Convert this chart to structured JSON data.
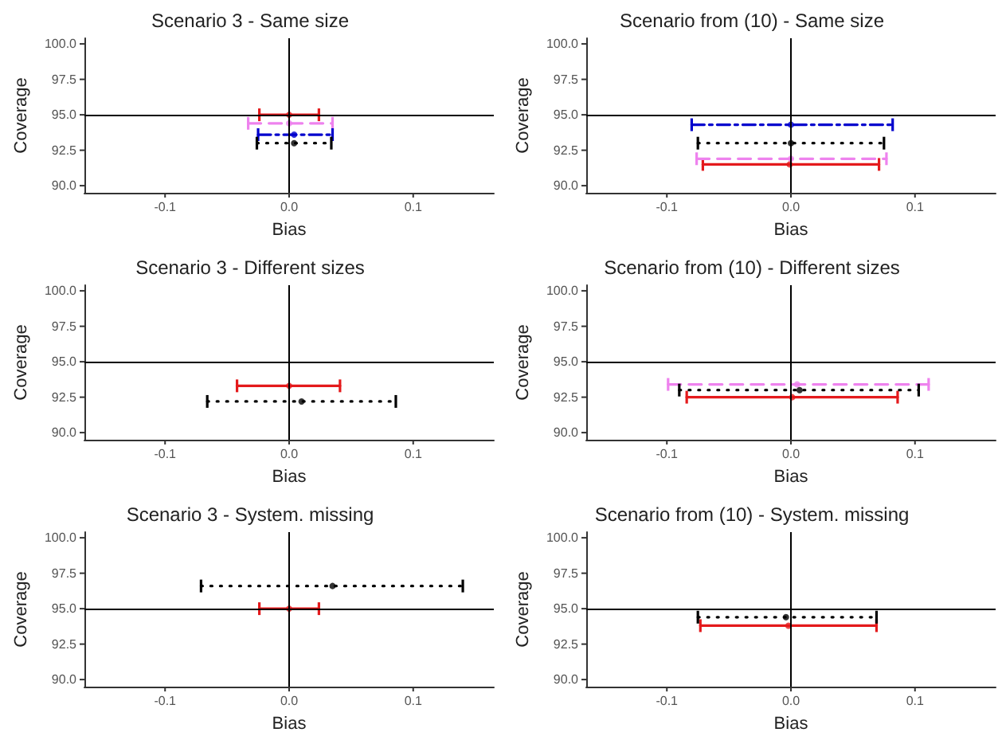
{
  "chart_data": [
    {
      "type": "scatter",
      "title": "Scenario 3 - Same size",
      "xlabel": "Bias",
      "ylabel": "Coverage",
      "xlim": [
        -0.165,
        0.165
      ],
      "ylim": [
        89.5,
        100.4
      ],
      "xticks": [
        {
          "value": -0.1,
          "label": "-0.1"
        },
        {
          "value": 0,
          "label": "0.0"
        },
        {
          "value": 0.1,
          "label": "0.1"
        }
      ],
      "yticks": [
        {
          "value": 90,
          "label": "90.0"
        },
        {
          "value": 92.5,
          "label": "92.5"
        },
        {
          "value": 95,
          "label": "95.0"
        },
        {
          "value": 97.5,
          "label": "97.5"
        },
        {
          "value": 100,
          "label": "100.0"
        }
      ],
      "grid": false,
      "marker": "circle",
      "ref_lines": [
        {
          "axis": "x",
          "value": 0,
          "color": "#000000"
        },
        {
          "axis": "y",
          "value": 95,
          "color": "#000000"
        }
      ],
      "series": [
        {
          "color": "#e41a1c",
          "line_style": "solid",
          "x": [
            0
          ],
          "values": [
            95
          ],
          "xerrors": [
            [
              -0.024,
              0.024
            ]
          ]
        },
        {
          "color": "#ee82ee",
          "line_style": "dashed",
          "x": [
            0
          ],
          "values": [
            94.4
          ],
          "xerrors": [
            [
              -0.033,
              0.035
            ]
          ]
        },
        {
          "color": "#0000cd",
          "line_style": "dashdot",
          "x": [
            0.004
          ],
          "values": [
            93.6
          ],
          "xerrors": [
            [
              -0.025,
              0.035
            ]
          ]
        },
        {
          "color": "#000000",
          "line_style": "dotted",
          "x": [
            0.004
          ],
          "values": [
            93.0
          ],
          "xerrors": [
            [
              -0.026,
              0.034
            ]
          ]
        }
      ]
    },
    {
      "type": "scatter",
      "title": "Scenario from (10) - Same size",
      "xlabel": "Bias",
      "ylabel": "Coverage",
      "xlim": [
        -0.165,
        0.165
      ],
      "ylim": [
        89.5,
        100.4
      ],
      "xticks": [
        {
          "value": -0.1,
          "label": "-0.1"
        },
        {
          "value": 0,
          "label": "0.0"
        },
        {
          "value": 0.1,
          "label": "0.1"
        }
      ],
      "yticks": [
        {
          "value": 90,
          "label": "90.0"
        },
        {
          "value": 92.5,
          "label": "92.5"
        },
        {
          "value": 95,
          "label": "95.0"
        },
        {
          "value": 97.5,
          "label": "97.5"
        },
        {
          "value": 100,
          "label": "100.0"
        }
      ],
      "grid": false,
      "marker": "circle",
      "ref_lines": [
        {
          "axis": "x",
          "value": 0,
          "color": "#000000"
        },
        {
          "axis": "y",
          "value": 95,
          "color": "#000000"
        }
      ],
      "series": [
        {
          "color": "#e41a1c",
          "line_style": "solid",
          "x": [
            -0.001
          ],
          "values": [
            91.5
          ],
          "xerrors": [
            [
              -0.071,
              0.071
            ]
          ]
        },
        {
          "color": "#ee82ee",
          "line_style": "dashed",
          "x": [
            0
          ],
          "values": [
            91.9
          ],
          "xerrors": [
            [
              -0.076,
              0.077
            ]
          ]
        },
        {
          "color": "#0000cd",
          "line_style": "dashdot",
          "x": [
            0
          ],
          "values": [
            94.3
          ],
          "xerrors": [
            [
              -0.08,
              0.082
            ]
          ]
        },
        {
          "color": "#000000",
          "line_style": "dotted",
          "x": [
            0
          ],
          "values": [
            93.0
          ],
          "xerrors": [
            [
              -0.075,
              0.075
            ]
          ]
        }
      ]
    },
    {
      "type": "scatter",
      "title": "Scenario 3 - Different sizes",
      "xlabel": "Bias",
      "ylabel": "Coverage",
      "xlim": [
        -0.165,
        0.165
      ],
      "ylim": [
        89.5,
        100.4
      ],
      "xticks": [
        {
          "value": -0.1,
          "label": "-0.1"
        },
        {
          "value": 0,
          "label": "0.0"
        },
        {
          "value": 0.1,
          "label": "0.1"
        }
      ],
      "yticks": [
        {
          "value": 90,
          "label": "90.0"
        },
        {
          "value": 92.5,
          "label": "92.5"
        },
        {
          "value": 95,
          "label": "95.0"
        },
        {
          "value": 97.5,
          "label": "97.5"
        },
        {
          "value": 100,
          "label": "100.0"
        }
      ],
      "grid": false,
      "marker": "circle",
      "ref_lines": [
        {
          "axis": "x",
          "value": 0,
          "color": "#000000"
        },
        {
          "axis": "y",
          "value": 95,
          "color": "#000000"
        }
      ],
      "series": [
        {
          "color": "#e41a1c",
          "line_style": "solid",
          "x": [
            0
          ],
          "values": [
            93.3
          ],
          "xerrors": [
            [
              -0.042,
              0.041
            ]
          ]
        },
        {
          "color": "#000000",
          "line_style": "dotted",
          "x": [
            0.01
          ],
          "values": [
            92.2
          ],
          "xerrors": [
            [
              -0.066,
              0.086
            ]
          ]
        }
      ]
    },
    {
      "type": "scatter",
      "title": "Scenario from (10) - Different sizes",
      "xlabel": "Bias",
      "ylabel": "Coverage",
      "xlim": [
        -0.165,
        0.165
      ],
      "ylim": [
        89.5,
        100.4
      ],
      "xticks": [
        {
          "value": -0.1,
          "label": "-0.1"
        },
        {
          "value": 0,
          "label": "0.0"
        },
        {
          "value": 0.1,
          "label": "0.1"
        }
      ],
      "yticks": [
        {
          "value": 90,
          "label": "90.0"
        },
        {
          "value": 92.5,
          "label": "92.5"
        },
        {
          "value": 95,
          "label": "95.0"
        },
        {
          "value": 97.5,
          "label": "97.5"
        },
        {
          "value": 100,
          "label": "100.0"
        }
      ],
      "grid": false,
      "marker": "circle",
      "ref_lines": [
        {
          "axis": "x",
          "value": 0,
          "color": "#000000"
        },
        {
          "axis": "y",
          "value": 95,
          "color": "#000000"
        }
      ],
      "series": [
        {
          "color": "#e41a1c",
          "line_style": "solid",
          "x": [
            0.001
          ],
          "values": [
            92.5
          ],
          "xerrors": [
            [
              -0.084,
              0.086
            ]
          ]
        },
        {
          "color": "#ee82ee",
          "line_style": "dashed",
          "x": [
            0.005
          ],
          "values": [
            93.4
          ],
          "xerrors": [
            [
              -0.099,
              0.111
            ]
          ]
        },
        {
          "color": "#000000",
          "line_style": "dotted",
          "x": [
            0.007
          ],
          "values": [
            93.0
          ],
          "xerrors": [
            [
              -0.09,
              0.103
            ]
          ]
        }
      ]
    },
    {
      "type": "scatter",
      "title": "Scenario 3 - System. missing",
      "xlabel": "Bias",
      "ylabel": "Coverage",
      "xlim": [
        -0.165,
        0.165
      ],
      "ylim": [
        89.5,
        100.4
      ],
      "xticks": [
        {
          "value": -0.1,
          "label": "-0.1"
        },
        {
          "value": 0,
          "label": "0.0"
        },
        {
          "value": 0.1,
          "label": "0.1"
        }
      ],
      "yticks": [
        {
          "value": 90,
          "label": "90.0"
        },
        {
          "value": 92.5,
          "label": "92.5"
        },
        {
          "value": 95,
          "label": "95.0"
        },
        {
          "value": 97.5,
          "label": "97.5"
        },
        {
          "value": 100,
          "label": "100.0"
        }
      ],
      "grid": false,
      "marker": "circle",
      "ref_lines": [
        {
          "axis": "x",
          "value": 0,
          "color": "#000000"
        },
        {
          "axis": "y",
          "value": 95,
          "color": "#000000"
        }
      ],
      "series": [
        {
          "color": "#e41a1c",
          "line_style": "solid",
          "x": [
            0
          ],
          "values": [
            95.0
          ],
          "xerrors": [
            [
              -0.024,
              0.024
            ]
          ]
        },
        {
          "color": "#000000",
          "line_style": "dotted",
          "x": [
            0.035
          ],
          "values": [
            96.6
          ],
          "xerrors": [
            [
              -0.071,
              0.14
            ]
          ]
        }
      ]
    },
    {
      "type": "scatter",
      "title": "Scenario from (10) - System. missing",
      "xlabel": "Bias",
      "ylabel": "Coverage",
      "xlim": [
        -0.165,
        0.165
      ],
      "ylim": [
        89.5,
        100.4
      ],
      "xticks": [
        {
          "value": -0.1,
          "label": "-0.1"
        },
        {
          "value": 0,
          "label": "0.0"
        },
        {
          "value": 0.1,
          "label": "0.1"
        }
      ],
      "yticks": [
        {
          "value": 90,
          "label": "90.0"
        },
        {
          "value": 92.5,
          "label": "92.5"
        },
        {
          "value": 95,
          "label": "95.0"
        },
        {
          "value": 97.5,
          "label": "97.5"
        },
        {
          "value": 100,
          "label": "100.0"
        }
      ],
      "grid": false,
      "marker": "circle",
      "ref_lines": [
        {
          "axis": "x",
          "value": 0,
          "color": "#000000"
        },
        {
          "axis": "y",
          "value": 95,
          "color": "#000000"
        }
      ],
      "series": [
        {
          "color": "#e41a1c",
          "line_style": "solid",
          "x": [
            -0.002
          ],
          "values": [
            93.8
          ],
          "xerrors": [
            [
              -0.073,
              0.069
            ]
          ]
        },
        {
          "color": "#000000",
          "line_style": "dotted",
          "x": [
            -0.004
          ],
          "values": [
            94.4
          ],
          "xerrors": [
            [
              -0.075,
              0.069
            ]
          ]
        }
      ]
    }
  ]
}
